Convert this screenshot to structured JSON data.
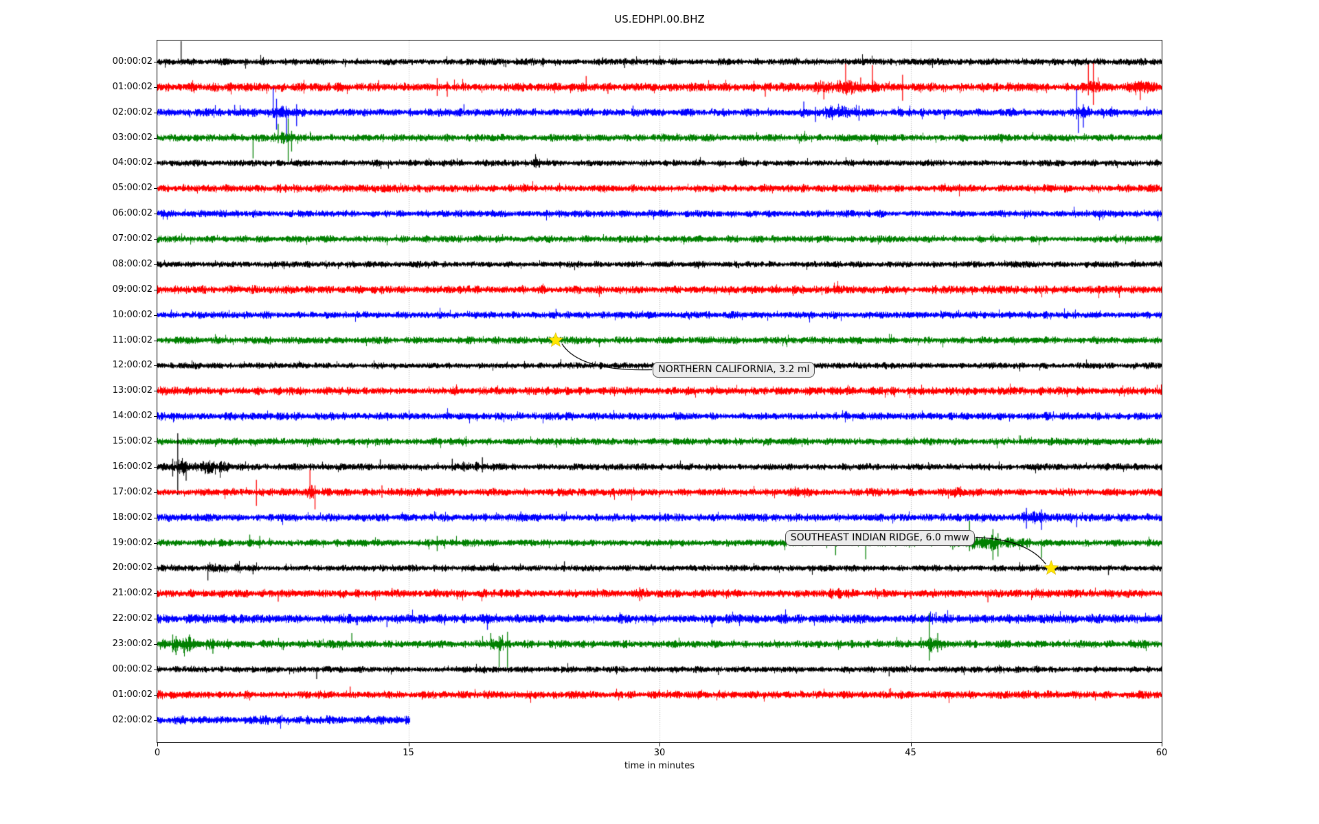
{
  "figure_title": "US.EDHPI.00.BHZ",
  "chart_data": {
    "type": "line",
    "subtype": "seismogram-helicorder",
    "title": "US.EDHPI.00.BHZ",
    "xlabel": "time in minutes",
    "x_range": [
      0,
      60
    ],
    "x_ticks": [
      0,
      15,
      30,
      45,
      60
    ],
    "grid_x_minutes": [
      15,
      30,
      45
    ],
    "grid_style": "dotted-vertical",
    "background": "#ffffff",
    "color_cycle": [
      "#000000",
      "#ff0000",
      "#0000ff",
      "#008000"
    ],
    "star_color": "#ffe600",
    "annotation_box_fill": "#ececec",
    "annotation_box_border": "#4a4a4a",
    "rows": [
      {
        "label": "00:00:02",
        "color": "#000000",
        "amp": 3.2,
        "end": 60,
        "spikes": [
          {
            "t": 1.4,
            "up": 30,
            "down": 5
          },
          {
            "t": 20.8,
            "up": 3,
            "down": 8
          },
          {
            "t": 27.9,
            "up": 4,
            "down": 9
          }
        ],
        "bursts": []
      },
      {
        "label": "01:00:02",
        "color": "#ff0000",
        "amp": 4.0,
        "end": 60,
        "spikes": [
          {
            "t": 13.2,
            "up": 10,
            "down": 5
          },
          {
            "t": 16.7,
            "up": 13,
            "down": 13
          },
          {
            "t": 17.3,
            "up": 8,
            "down": 14
          },
          {
            "t": 25.6,
            "up": 16,
            "down": 6
          },
          {
            "t": 26.9,
            "up": 5,
            "down": 10
          },
          {
            "t": 36.3,
            "up": 6,
            "down": 14
          },
          {
            "t": 39.8,
            "up": 8,
            "down": 18
          },
          {
            "t": 41.1,
            "up": 34,
            "down": 10
          },
          {
            "t": 42.0,
            "up": 14,
            "down": 6
          },
          {
            "t": 42.7,
            "up": 32,
            "down": 8
          },
          {
            "t": 44.5,
            "up": 18,
            "down": 20
          },
          {
            "t": 55.6,
            "up": 33,
            "down": 12
          },
          {
            "t": 55.9,
            "up": 35,
            "down": 26
          },
          {
            "t": 58.7,
            "up": 8,
            "down": 19
          }
        ],
        "bursts": [
          {
            "t": 41.3,
            "w": 7,
            "peak": 1.7
          },
          {
            "t": 55.8,
            "w": 1.5,
            "peak": 2.0
          },
          {
            "t": 58.8,
            "w": 2.5,
            "peak": 1.5
          }
        ]
      },
      {
        "label": "02:00:02",
        "color": "#0000ff",
        "amp": 3.6,
        "end": 60,
        "spikes": [
          {
            "t": 4.6,
            "up": 11,
            "down": 4
          },
          {
            "t": 6.9,
            "up": 36,
            "down": 8
          },
          {
            "t": 7.1,
            "up": 20,
            "down": 25
          },
          {
            "t": 7.7,
            "up": 6,
            "down": 42
          },
          {
            "t": 8.3,
            "up": 12,
            "down": 20
          },
          {
            "t": 18.3,
            "up": 12,
            "down": 4
          },
          {
            "t": 28.4,
            "up": 10,
            "down": 4
          },
          {
            "t": 38.6,
            "up": 16,
            "down": 8
          },
          {
            "t": 39.3,
            "up": 8,
            "down": 14
          },
          {
            "t": 41.9,
            "up": 10,
            "down": 12
          },
          {
            "t": 47.0,
            "up": 3,
            "down": 10
          },
          {
            "t": 54.9,
            "up": 35,
            "down": 10
          },
          {
            "t": 55.0,
            "up": 8,
            "down": 30
          },
          {
            "t": 55.3,
            "up": 12,
            "down": 22
          }
        ],
        "bursts": [
          {
            "t": 7.3,
            "w": 1.6,
            "peak": 2.0
          },
          {
            "t": 40.5,
            "w": 4.5,
            "peak": 1.7
          },
          {
            "t": 55.1,
            "w": 1.8,
            "peak": 1.9
          }
        ]
      },
      {
        "label": "03:00:02",
        "color": "#008000",
        "amp": 3.4,
        "end": 60,
        "spikes": [
          {
            "t": 5.7,
            "up": 4,
            "down": 30
          },
          {
            "t": 7.2,
            "up": 20,
            "down": 8
          },
          {
            "t": 7.8,
            "up": 28,
            "down": 35
          },
          {
            "t": 8.0,
            "up": 10,
            "down": 20
          }
        ],
        "bursts": [
          {
            "t": 7.6,
            "w": 2.5,
            "peak": 1.5
          }
        ]
      },
      {
        "label": "04:00:02",
        "color": "#000000",
        "amp": 3.0,
        "end": 60,
        "spikes": [
          {
            "t": 22.6,
            "up": 9,
            "down": 7
          }
        ],
        "bursts": [
          {
            "t": 22.6,
            "w": 0.8,
            "peak": 1.5
          }
        ]
      },
      {
        "label": "05:00:02",
        "color": "#ff0000",
        "amp": 3.7,
        "end": 60,
        "spikes": [],
        "bursts": []
      },
      {
        "label": "06:00:02",
        "color": "#0000ff",
        "amp": 3.4,
        "end": 60,
        "spikes": [],
        "bursts": []
      },
      {
        "label": "07:00:02",
        "color": "#008000",
        "amp": 3.3,
        "end": 60,
        "spikes": [],
        "bursts": []
      },
      {
        "label": "08:00:02",
        "color": "#000000",
        "amp": 3.0,
        "end": 60,
        "spikes": [],
        "bursts": []
      },
      {
        "label": "09:00:02",
        "color": "#ff0000",
        "amp": 3.8,
        "end": 60,
        "spikes": [],
        "bursts": []
      },
      {
        "label": "10:00:02",
        "color": "#0000ff",
        "amp": 3.3,
        "end": 60,
        "spikes": [
          {
            "t": 23.8,
            "up": 9,
            "down": 3
          }
        ],
        "bursts": []
      },
      {
        "label": "11:00:02",
        "color": "#008000",
        "amp": 3.4,
        "end": 60,
        "spikes": [
          {
            "t": 24.3,
            "up": 6,
            "down": 4
          }
        ],
        "bursts": []
      },
      {
        "label": "12:00:02",
        "color": "#000000",
        "amp": 3.0,
        "end": 60,
        "spikes": [],
        "bursts": []
      },
      {
        "label": "13:00:02",
        "color": "#ff0000",
        "amp": 3.8,
        "end": 60,
        "spikes": [],
        "bursts": []
      },
      {
        "label": "14:00:02",
        "color": "#0000ff",
        "amp": 3.6,
        "end": 60,
        "spikes": [],
        "bursts": []
      },
      {
        "label": "15:00:02",
        "color": "#008000",
        "amp": 3.3,
        "end": 60,
        "spikes": [],
        "bursts": []
      },
      {
        "label": "16:00:02",
        "color": "#000000",
        "amp": 3.2,
        "end": 60,
        "spikes": [
          {
            "t": 0.9,
            "up": 12,
            "down": 14
          },
          {
            "t": 1.2,
            "up": 49,
            "down": 41
          },
          {
            "t": 1.7,
            "up": 8,
            "down": 20
          },
          {
            "t": 13.3,
            "up": 11,
            "down": 4
          },
          {
            "t": 17.6,
            "up": 12,
            "down": 6
          },
          {
            "t": 19.4,
            "up": 14,
            "down": 8
          }
        ],
        "bursts": [
          {
            "t": 1.5,
            "w": 2.2,
            "peak": 2.4
          },
          {
            "t": 2.9,
            "w": 1.6,
            "peak": 2.1
          },
          {
            "t": 3.9,
            "w": 1.0,
            "peak": 1.7
          },
          {
            "t": 18.5,
            "w": 2.5,
            "peak": 1.5
          }
        ]
      },
      {
        "label": "17:00:02",
        "color": "#ff0000",
        "amp": 3.6,
        "end": 60,
        "spikes": [
          {
            "t": 5.9,
            "up": 18,
            "down": 20
          },
          {
            "t": 9.1,
            "up": 33,
            "down": 10
          },
          {
            "t": 9.4,
            "up": 10,
            "down": 25
          },
          {
            "t": 13.4,
            "up": 10,
            "down": 8
          }
        ],
        "bursts": [
          {
            "t": 9.2,
            "w": 1.2,
            "peak": 1.8
          },
          {
            "t": 48.0,
            "w": 3.0,
            "peak": 1.3
          }
        ]
      },
      {
        "label": "18:00:02",
        "color": "#0000ff",
        "amp": 3.6,
        "end": 60,
        "spikes": [
          {
            "t": 21.7,
            "up": 9,
            "down": 4
          },
          {
            "t": 30.0,
            "up": 8,
            "down": 6
          },
          {
            "t": 51.9,
            "up": 14,
            "down": 16
          },
          {
            "t": 52.8,
            "up": 12,
            "down": 18
          },
          {
            "t": 54.9,
            "up": 6,
            "down": 14
          }
        ],
        "bursts": [
          {
            "t": 52.3,
            "w": 2.8,
            "peak": 1.7
          }
        ]
      },
      {
        "label": "19:00:02",
        "color": "#008000",
        "amp": 3.4,
        "end": 60,
        "spikes": [
          {
            "t": 5.5,
            "up": 12,
            "down": 6
          },
          {
            "t": 6.1,
            "up": 10,
            "down": 8
          },
          {
            "t": 16.7,
            "up": 10,
            "down": 12
          },
          {
            "t": 40.5,
            "up": 6,
            "down": 18
          },
          {
            "t": 42.3,
            "up": 5,
            "down": 24
          },
          {
            "t": 47.5,
            "up": 18,
            "down": 10
          },
          {
            "t": 48.5,
            "up": 32,
            "down": 12
          },
          {
            "t": 49.9,
            "up": 20,
            "down": 25
          },
          {
            "t": 50.2,
            "up": 14,
            "down": 20
          },
          {
            "t": 52.8,
            "up": 5,
            "down": 22
          }
        ],
        "bursts": [
          {
            "t": 49.3,
            "w": 4.5,
            "peak": 2.0
          },
          {
            "t": 51.5,
            "w": 2.0,
            "peak": 1.5
          }
        ]
      },
      {
        "label": "20:00:02",
        "color": "#000000",
        "amp": 3.0,
        "end": 60,
        "spikes": [
          {
            "t": 3.0,
            "up": 6,
            "down": 18
          },
          {
            "t": 5.7,
            "up": 5,
            "down": 9
          },
          {
            "t": 24.3,
            "up": 10,
            "down": 5
          },
          {
            "t": 56.8,
            "up": 4,
            "down": 10
          }
        ],
        "bursts": [
          {
            "t": 3.3,
            "w": 1.8,
            "peak": 1.5
          },
          {
            "t": 4.8,
            "w": 1.2,
            "peak": 1.4
          }
        ]
      },
      {
        "label": "21:00:02",
        "color": "#ff0000",
        "amp": 3.8,
        "end": 60,
        "spikes": [
          {
            "t": 7.2,
            "up": 4,
            "down": 12
          },
          {
            "t": 14.0,
            "up": 8,
            "down": 4
          },
          {
            "t": 28.8,
            "up": 9,
            "down": 11
          },
          {
            "t": 45.0,
            "up": 4,
            "down": 8
          },
          {
            "t": 49.6,
            "up": 4,
            "down": 13
          }
        ],
        "bursts": [
          {
            "t": 28.8,
            "w": 1.0,
            "peak": 1.4
          },
          {
            "t": 40.5,
            "w": 2.0,
            "peak": 1.3
          },
          {
            "t": 58.5,
            "w": 2.0,
            "peak": 1.3
          }
        ]
      },
      {
        "label": "22:00:02",
        "color": "#0000ff",
        "amp": 4.2,
        "end": 60,
        "spikes": [
          {
            "t": 13.7,
            "up": 4,
            "down": 12
          },
          {
            "t": 19.7,
            "up": 5,
            "down": 16
          },
          {
            "t": 46.5,
            "up": 10,
            "down": 6
          }
        ],
        "bursts": []
      },
      {
        "label": "23:00:02",
        "color": "#008000",
        "amp": 3.6,
        "end": 60,
        "spikes": [
          {
            "t": 0.9,
            "up": 14,
            "down": 12
          },
          {
            "t": 1.1,
            "up": 12,
            "down": 16
          },
          {
            "t": 1.9,
            "up": 14,
            "down": 10
          },
          {
            "t": 3.3,
            "up": 8,
            "down": 14
          },
          {
            "t": 11.6,
            "up": 16,
            "down": 5
          },
          {
            "t": 19.9,
            "up": 16,
            "down": 8
          },
          {
            "t": 20.4,
            "up": 12,
            "down": 34
          },
          {
            "t": 20.9,
            "up": 18,
            "down": 38
          },
          {
            "t": 45.6,
            "up": 10,
            "down": 6
          },
          {
            "t": 46.1,
            "up": 45,
            "down": 24
          },
          {
            "t": 46.6,
            "up": 16,
            "down": 12
          }
        ],
        "bursts": [
          {
            "t": 1.3,
            "w": 1.6,
            "peak": 2.0
          },
          {
            "t": 2.1,
            "w": 1.2,
            "peak": 1.8
          },
          {
            "t": 3.5,
            "w": 2.2,
            "peak": 1.5
          },
          {
            "t": 20.4,
            "w": 1.8,
            "peak": 1.6
          },
          {
            "t": 46.2,
            "w": 1.6,
            "peak": 1.8
          }
        ]
      },
      {
        "label": "00:00:02",
        "color": "#000000",
        "amp": 3.0,
        "end": 60,
        "spikes": [
          {
            "t": 9.5,
            "up": 3,
            "down": 14
          },
          {
            "t": 33.5,
            "up": 4,
            "down": 8
          },
          {
            "t": 43.7,
            "up": 4,
            "down": 10
          }
        ],
        "bursts": []
      },
      {
        "label": "01:00:02",
        "color": "#ff0000",
        "amp": 3.7,
        "end": 60,
        "spikes": [
          {
            "t": 11.5,
            "up": 12,
            "down": 4
          }
        ],
        "bursts": []
      },
      {
        "label": "02:00:02",
        "color": "#0000ff",
        "amp": 4.0,
        "end": 15.1,
        "spikes": [],
        "bursts": []
      }
    ],
    "annotations": [
      {
        "text": "NORTHERN CALIFORNIA, 3.2 ml",
        "star_min": 23.8,
        "star_row": 11,
        "box_min": 29.6,
        "box_row": 12,
        "box_dy": 6,
        "connect": "left"
      },
      {
        "text": "SOUTHEAST INDIAN RIDGE, 6.0 mww",
        "star_min": 53.4,
        "star_row": 20,
        "box_min": 37.5,
        "box_row": 19,
        "box_dy": -8,
        "connect": "right"
      }
    ]
  }
}
